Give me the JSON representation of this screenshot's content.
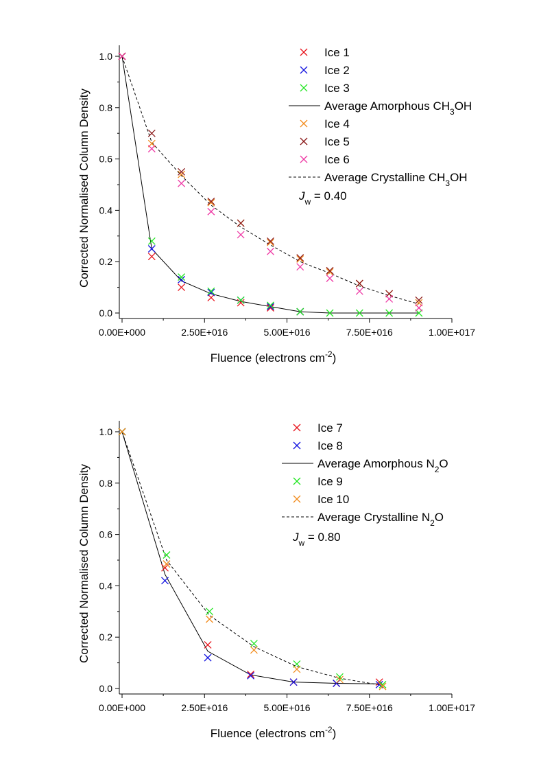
{
  "chart_data": [
    {
      "type": "scatter",
      "xlabel": "Fluence (electrons cm",
      "xlabel_sup": "-2",
      "xlabel_tail": ")",
      "ylabel": "Corrected Normalised Column Density",
      "xlim": [
        0,
        1e+17
      ],
      "ylim": [
        0,
        1.0
      ],
      "x_ticks": [
        0,
        2.5e+16,
        5e+16,
        7.5e+16,
        1e+17
      ],
      "x_tick_labels": [
        "0.00E+000",
        "2.50E+016",
        "5.00E+016",
        "7.50E+016",
        "1.00E+017"
      ],
      "y_ticks": [
        0,
        0.2,
        0.4,
        0.6,
        0.8,
        1.0
      ],
      "y_tick_labels": [
        "0.0",
        "0.2",
        "0.4",
        "0.6",
        "0.8",
        "1.0"
      ],
      "legend_position": "top-right",
      "annotation": {
        "main": "J",
        "sub": "w",
        "rest": " = 0.40"
      },
      "series": [
        {
          "name": "Ice 1",
          "kind": "marker",
          "color": "#e8141c",
          "x": [
            0,
            9000000000000000.0,
            1.8e+16,
            2.7e+16,
            3.6e+16,
            4.5e+16,
            5.4e+16
          ],
          "y": [
            1.0,
            0.22,
            0.1,
            0.06,
            0.04,
            0.02,
            0.005
          ]
        },
        {
          "name": "Ice 2",
          "kind": "marker",
          "color": "#1414e0",
          "x": [
            0,
            9000000000000000.0,
            1.8e+16,
            2.7e+16,
            3.6e+16,
            4.5e+16,
            5.4e+16
          ],
          "y": [
            1.0,
            0.25,
            0.13,
            0.08,
            0.05,
            0.025,
            0.005
          ]
        },
        {
          "name": "Ice 3",
          "kind": "marker",
          "color": "#22e622",
          "x": [
            0,
            9000000000000000.0,
            1.8e+16,
            2.7e+16,
            3.6e+16,
            4.5e+16,
            5.4e+16,
            6.3e+16,
            7.2e+16,
            8.1e+16,
            9e+16
          ],
          "y": [
            1.0,
            0.28,
            0.14,
            0.085,
            0.05,
            0.03,
            0.005,
            0,
            0,
            0,
            0
          ]
        },
        {
          "name": "Average Amorphous CH",
          "name_sub": "3",
          "name_tail": "OH",
          "kind": "line",
          "dash": "solid",
          "color": "#000000",
          "x": [
            0,
            9000000000000000.0,
            1.8e+16,
            2.7e+16,
            3.6e+16,
            4.5e+16,
            5.4e+16,
            6.3e+16,
            7.2e+16,
            8.1e+16,
            9e+16
          ],
          "y": [
            1.0,
            0.25,
            0.125,
            0.075,
            0.045,
            0.025,
            0.005,
            0,
            0,
            0,
            0
          ]
        },
        {
          "name": "Ice 4",
          "kind": "marker",
          "color": "#f28c1e",
          "x": [
            0,
            9000000000000000.0,
            1.8e+16,
            2.7e+16,
            3.6e+16,
            4.5e+16,
            5.4e+16,
            6.3e+16,
            7.2e+16,
            8.1e+16,
            9e+16
          ],
          "y": [
            1.0,
            0.66,
            0.54,
            0.43,
            0.35,
            0.275,
            0.21,
            0.16,
            0.115,
            0.075,
            0.04
          ]
        },
        {
          "name": "Ice 5",
          "kind": "marker",
          "color": "#8b1a1a",
          "x": [
            0,
            9000000000000000.0,
            1.8e+16,
            2.7e+16,
            3.6e+16,
            4.5e+16,
            5.4e+16,
            6.3e+16,
            7.2e+16,
            8.1e+16,
            9e+16
          ],
          "y": [
            1.0,
            0.7,
            0.55,
            0.435,
            0.35,
            0.28,
            0.215,
            0.165,
            0.115,
            0.075,
            0.05
          ]
        },
        {
          "name": "Ice 6",
          "kind": "marker",
          "color": "#ee3aa5",
          "x": [
            0,
            9000000000000000.0,
            1.8e+16,
            2.7e+16,
            3.6e+16,
            4.5e+16,
            5.4e+16,
            6.3e+16,
            7.2e+16,
            8.1e+16,
            9e+16
          ],
          "y": [
            1.0,
            0.64,
            0.505,
            0.395,
            0.305,
            0.24,
            0.18,
            0.135,
            0.085,
            0.055,
            0.02
          ]
        },
        {
          "name": "Average Crystalline CH",
          "name_sub": "3",
          "name_tail": "OH",
          "kind": "line",
          "dash": "dashed",
          "color": "#000000",
          "x": [
            0,
            9000000000000000.0,
            1.8e+16,
            2.7e+16,
            3.6e+16,
            4.5e+16,
            5.4e+16,
            6.3e+16,
            7.2e+16,
            8.1e+16,
            9e+16
          ],
          "y": [
            1.0,
            0.665,
            0.535,
            0.42,
            0.335,
            0.265,
            0.2,
            0.155,
            0.105,
            0.068,
            0.035
          ]
        }
      ]
    },
    {
      "type": "scatter",
      "xlabel": "Fluence (electrons cm",
      "xlabel_sup": "-2",
      "xlabel_tail": ")",
      "ylabel": "Corrected Normalised Column Density",
      "xlim": [
        0,
        1e+17
      ],
      "ylim": [
        0,
        1.0
      ],
      "x_ticks": [
        0,
        2.5e+16,
        5e+16,
        7.5e+16,
        1e+17
      ],
      "x_tick_labels": [
        "0.00E+000",
        "2.50E+016",
        "5.00E+016",
        "7.50E+016",
        "1.00E+017"
      ],
      "y_ticks": [
        0,
        0.2,
        0.4,
        0.6,
        0.8,
        1.0
      ],
      "y_tick_labels": [
        "0.0",
        "0.2",
        "0.4",
        "0.6",
        "0.8",
        "1.0"
      ],
      "legend_position": "top-right",
      "annotation": {
        "main": "J",
        "sub": "w",
        "rest": " = 0.80"
      },
      "series": [
        {
          "name": "Ice 7",
          "kind": "marker",
          "color": "#e8141c",
          "x": [
            0,
            1.3e+16,
            2.6e+16,
            3.9e+16,
            5.2e+16,
            6.5e+16,
            7.8e+16
          ],
          "y": [
            1.0,
            0.47,
            0.17,
            0.055,
            0.025,
            0.02,
            0.025
          ]
        },
        {
          "name": "Ice 8",
          "kind": "marker",
          "color": "#1414e0",
          "x": [
            0,
            1.3e+16,
            2.6e+16,
            3.9e+16,
            5.2e+16,
            6.5e+16,
            7.8e+16
          ],
          "y": [
            1.0,
            0.42,
            0.12,
            0.05,
            0.025,
            0.02,
            0.015
          ]
        },
        {
          "name": "Average Amorphous N",
          "name_sub": "2",
          "name_tail": "O",
          "kind": "line",
          "dash": "solid",
          "color": "#000000",
          "x": [
            0,
            1.3e+16,
            2.6e+16,
            3.9e+16,
            5.2e+16,
            6.5e+16,
            7.8e+16
          ],
          "y": [
            1.0,
            0.445,
            0.145,
            0.053,
            0.025,
            0.02,
            0.018
          ]
        },
        {
          "name": "Ice 9",
          "kind": "marker",
          "color": "#22e622",
          "x": [
            0,
            1.35e+16,
            2.65e+16,
            4e+16,
            5.3e+16,
            6.6e+16,
            7.9e+16
          ],
          "y": [
            1.0,
            0.52,
            0.3,
            0.175,
            0.095,
            0.045,
            0.015
          ]
        },
        {
          "name": "Ice 10",
          "kind": "marker",
          "color": "#f28c1e",
          "x": [
            0,
            1.35e+16,
            2.65e+16,
            4e+16,
            5.3e+16,
            6.6e+16,
            7.9e+16
          ],
          "y": [
            1.0,
            0.485,
            0.27,
            0.15,
            0.075,
            0.035,
            0.008
          ]
        },
        {
          "name": "Average Crystalline N",
          "name_sub": "2",
          "name_tail": "O",
          "kind": "line",
          "dash": "dashed",
          "color": "#000000",
          "x": [
            0,
            1.35e+16,
            2.65e+16,
            4e+16,
            5.3e+16,
            6.6e+16,
            7.9e+16
          ],
          "y": [
            1.0,
            0.5,
            0.285,
            0.163,
            0.085,
            0.04,
            0.012
          ]
        }
      ]
    }
  ]
}
